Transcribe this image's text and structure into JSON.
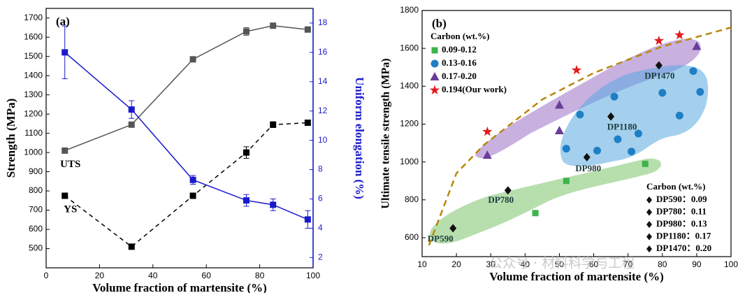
{
  "chart_data": [
    {
      "type": "line",
      "panel_label": "(a)",
      "x_label": "Volume fraction of martensite (%)",
      "y_label": "Strength (MPa)",
      "y2_label": "Uniform elongation (%)",
      "xlim": [
        0,
        100
      ],
      "xticks": [
        0,
        20,
        40,
        60,
        80,
        100
      ],
      "ylim": [
        400,
        1750
      ],
      "yticks": [
        500,
        600,
        700,
        800,
        900,
        1000,
        1100,
        1200,
        1300,
        1400,
        1500,
        1600,
        1700
      ],
      "y2lim": [
        1.3,
        19
      ],
      "y2ticks": [
        2,
        4,
        6,
        8,
        10,
        12,
        14,
        16,
        18
      ],
      "x": [
        7,
        32,
        55,
        75,
        85,
        98
      ],
      "series": [
        {
          "name": "UTS",
          "color": "#555555",
          "style": "solid",
          "values": [
            1010,
            1145,
            1485,
            1630,
            1660,
            1640
          ],
          "errors": [
            0,
            10,
            0,
            20,
            10,
            0
          ]
        },
        {
          "name": "YS",
          "color": "#000000",
          "style": "dashed",
          "values": [
            775,
            510,
            775,
            1000,
            1145,
            1155
          ],
          "errors": [
            0,
            0,
            0,
            30,
            15,
            0
          ]
        },
        {
          "axis": "y2",
          "color": "#1a1acc",
          "style": "solid",
          "values": [
            16,
            12.1,
            7.3,
            5.9,
            5.6,
            4.6
          ],
          "errors": [
            1.8,
            0.6,
            0.3,
            0.4,
            0.4,
            0.6
          ]
        }
      ]
    },
    {
      "type": "scatter",
      "panel_label": "(b)",
      "x_label": "Volume fraction of martensite (%)",
      "y_label": "Ultimate tensile strength (MPa)",
      "xlim": [
        10,
        100
      ],
      "xticks": [
        10,
        20,
        30,
        40,
        50,
        60,
        70,
        80,
        90,
        100
      ],
      "ylim": [
        500,
        1800
      ],
      "yticks": [
        600,
        800,
        1000,
        1200,
        1400,
        1600,
        1800
      ],
      "legend_title": "Carbon (wt.%)",
      "series": [
        {
          "name": "0.09-0.12",
          "color": "#3cb44b",
          "marker": "square",
          "x": [
            43,
            52,
            75
          ],
          "values": [
            730,
            900,
            990
          ]
        },
        {
          "name": "0.13-0.16",
          "color": "#1f7fc4",
          "marker": "circle",
          "x": [
            52,
            56,
            61,
            66,
            67,
            71,
            73,
            80,
            85,
            89,
            91
          ],
          "values": [
            1070,
            1250,
            1060,
            1345,
            1120,
            1055,
            1150,
            1365,
            1245,
            1480,
            1370
          ]
        },
        {
          "name": "0.17-0.20",
          "color": "#6a3d9a",
          "marker": "triangle",
          "x": [
            29,
            50,
            50,
            90
          ],
          "values": [
            1035,
            1165,
            1300,
            1610
          ]
        },
        {
          "name": "0.194(Our work)",
          "color": "#e41a1c",
          "marker": "star",
          "x": [
            29,
            55,
            79,
            85
          ],
          "values": [
            1160,
            1485,
            1640,
            1670
          ]
        },
        {
          "color": "#111111",
          "marker": "diamond",
          "x": [
            19,
            35,
            58,
            65,
            79
          ],
          "values": [
            650,
            850,
            1025,
            1240,
            1510
          ],
          "point_labels": [
            "DP590",
            "DP780",
            "DP980",
            "DP1180",
            "DP1470"
          ]
        },
        {
          "color": "#b8860b",
          "marker": "none",
          "style": "dashed",
          "x": [
            12,
            20,
            28,
            45,
            60,
            80,
            100
          ],
          "values": [
            560,
            940,
            1090,
            1330,
            1470,
            1610,
            1710
          ]
        }
      ],
      "legend2": {
        "title": "Carbon (wt.%)",
        "entries": [
          "DP590：0.09",
          "DP780：0.11",
          "DP980：0.13",
          "DP1180：0.17",
          "DP1470：0.20"
        ]
      },
      "watermark": "公众号 · 材料科学与工程"
    }
  ]
}
